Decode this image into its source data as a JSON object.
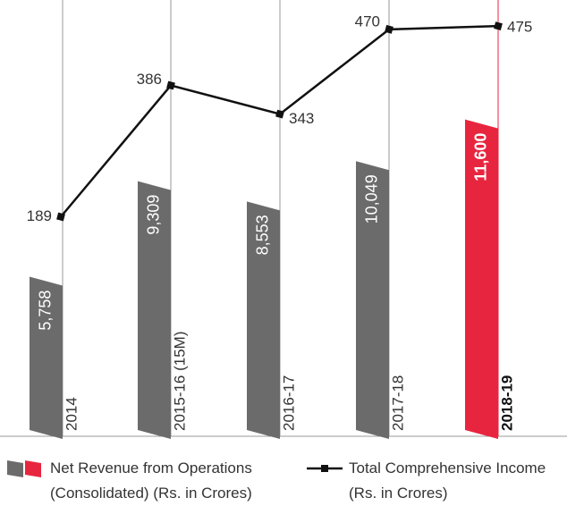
{
  "chart_data": {
    "type": "bar_line",
    "categories": [
      "2014",
      "2015-16 (15M)",
      "2016-17",
      "2017-18",
      "2018-19"
    ],
    "series": [
      {
        "name": "Net Revenue from Operations (Consolidated) (Rs. in Crores)",
        "colors": [
          "#6b6b6b",
          "#6b6b6b",
          "#6b6b6b",
          "#6b6b6b",
          "#e8253f"
        ],
        "values": [
          5758,
          9309,
          8553,
          10049,
          11600
        ],
        "value_labels": [
          "5,758",
          "9,309",
          "8,553",
          "10,049",
          "11,600"
        ]
      },
      {
        "name": "Total Comprehensive Income (Rs. in Crores)",
        "color": "#111111",
        "axis": "y2",
        "values": [
          189,
          386,
          343,
          470,
          475
        ]
      }
    ],
    "ylim": [
      0,
      16200
    ],
    "y2lim": [
      -140,
      514
    ]
  }
}
